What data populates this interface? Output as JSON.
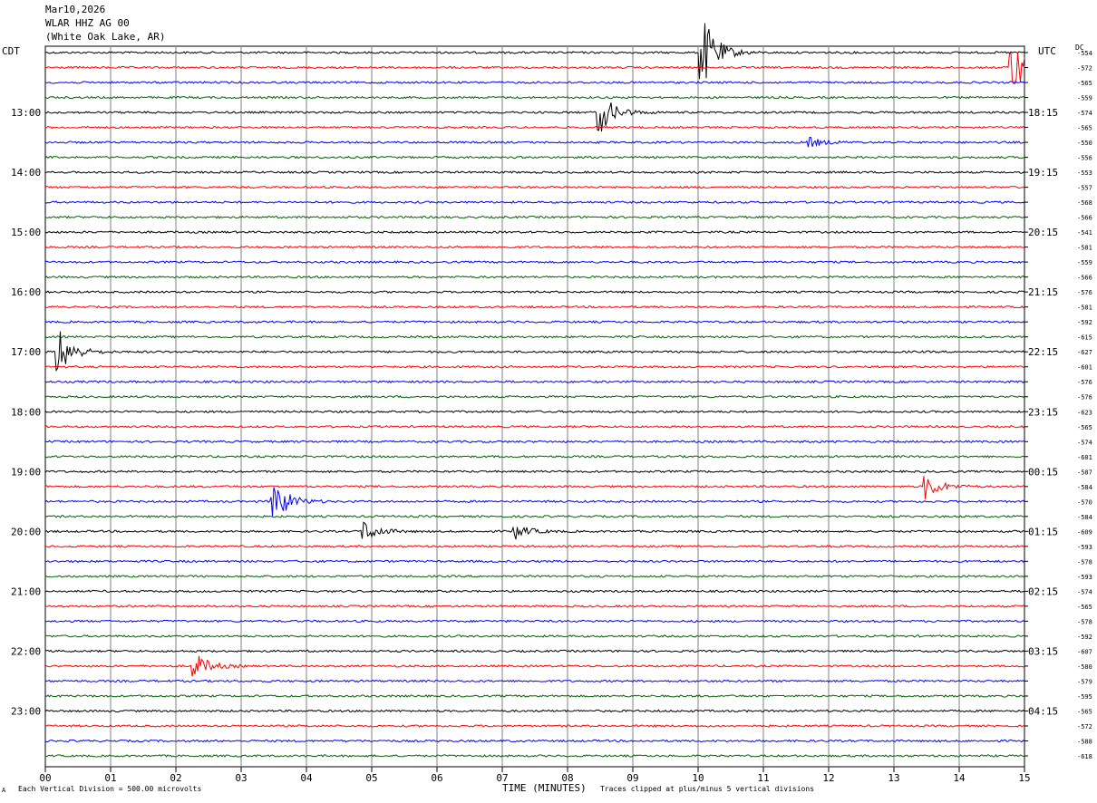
{
  "header": {
    "date": "Mar10,2026",
    "station": "WLAR HHZ AG 00",
    "location": "(White Oak Lake, AR)"
  },
  "left_tz": "CDT",
  "right_tz": "UTC",
  "dc_label": "DC",
  "footer": {
    "scale_note": "Each Vertical Division =  500.00 microvolts",
    "x_title": "TIME (MINUTES)",
    "clip_note": "Traces clipped at plus/minus 5 vertical divisions",
    "corner_mark": "A"
  },
  "colors": {
    "black": "#000000",
    "red": "#ff0000",
    "blue": "#0000ff",
    "green": "#006400",
    "grid": "#808080"
  },
  "chart_data": {
    "type": "line",
    "x_range": [
      0,
      15
    ],
    "x_ticks": [
      "00",
      "01",
      "02",
      "03",
      "04",
      "05",
      "06",
      "07",
      "08",
      "09",
      "10",
      "11",
      "12",
      "13",
      "14",
      "15"
    ],
    "color_cycle": [
      "black",
      "red",
      "blue",
      "green"
    ],
    "rows_per_hour": 4,
    "left_hour_labels": [
      "13:00",
      "14:00",
      "15:00",
      "16:00",
      "17:00",
      "18:00",
      "19:00",
      "20:00",
      "21:00",
      "22:00",
      "23:00"
    ],
    "right_hour_labels": [
      "18:15",
      "19:15",
      "20:15",
      "21:15",
      "22:15",
      "23:15",
      "00:15",
      "01:15",
      "02:15",
      "03:15",
      "04:15"
    ],
    "dc_values": [
      -554,
      -572,
      -565,
      -559,
      -574,
      -565,
      -550,
      -556,
      -553,
      -557,
      -568,
      -566,
      -541,
      -581,
      -559,
      -566,
      -576,
      -581,
      -592,
      -615,
      -627,
      -601,
      -576,
      -576,
      -623,
      -565,
      -574,
      -601,
      -587,
      -584,
      -570,
      -584,
      -609,
      -593,
      -578,
      -593,
      -574,
      -565,
      -578,
      -592,
      -607,
      -580,
      -579,
      -595,
      -565,
      -572,
      -588,
      -618
    ],
    "events": [
      {
        "row": 0,
        "minute": 10.05,
        "amp": 5
      },
      {
        "row": 1,
        "minute": 14.8,
        "amp": 3.5
      },
      {
        "row": 4,
        "minute": 8.5,
        "amp": 2.5
      },
      {
        "row": 6,
        "minute": 11.7,
        "amp": 0.6
      },
      {
        "row": 20,
        "minute": 0.2,
        "amp": 3
      },
      {
        "row": 29,
        "minute": 13.5,
        "amp": 1.5
      },
      {
        "row": 30,
        "minute": 3.5,
        "amp": 2.8
      },
      {
        "row": 32,
        "minute": 4.9,
        "amp": 1.2
      },
      {
        "row": 32,
        "minute": 7.2,
        "amp": 0.9
      },
      {
        "row": 41,
        "minute": 2.3,
        "amp": 1.5
      }
    ]
  }
}
